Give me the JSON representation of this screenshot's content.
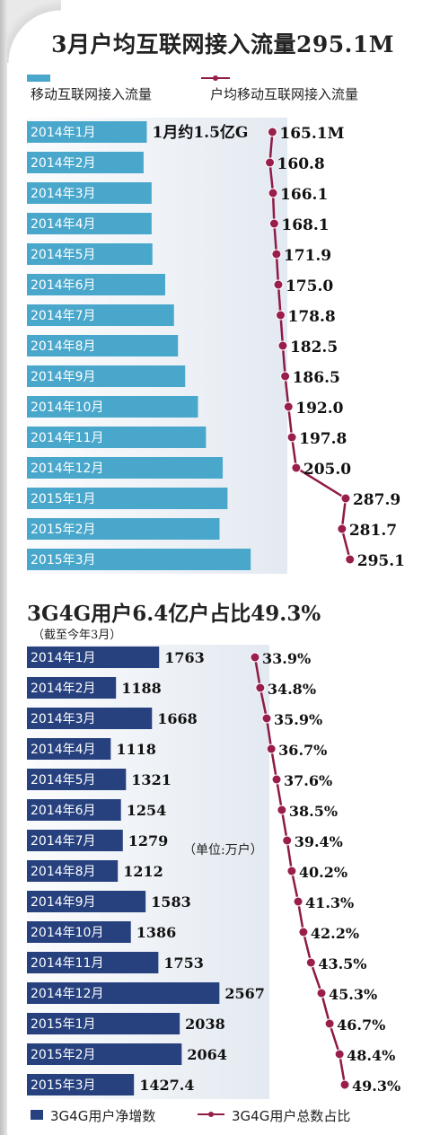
{
  "title1": "3月户均互联网接入流量295.1M",
  "legend1": {
    "bar": "移动互联网接入流量",
    "line": "户均移动互联网接入流量"
  },
  "title2": "3G4G用户6.4亿户占比49.3%",
  "subtitle2": "（截至今年3月）",
  "unit_note": "（单位:万户）",
  "legend2": {
    "bar": "3G4G用户净增数",
    "line": "3G4G用户总数占比"
  },
  "colors": {
    "bar1": "#4aa7cc",
    "bar2": "#27417f",
    "line": "#8e1b45",
    "dot": "#9a1e4c",
    "shade": "#dfe6ef"
  },
  "chart_data": [
    {
      "type": "bar",
      "categories": [
        "2014年1月",
        "2014年2月",
        "2014年3月",
        "2014年4月",
        "2014年5月",
        "2014年6月",
        "2014年7月",
        "2014年8月",
        "2014年9月",
        "2014年10月",
        "2014年11月",
        "2014年12月",
        "2015年1月",
        "2015年2月",
        "2015年3月"
      ],
      "series": [
        {
          "name": "移动互联网接入流量",
          "kind": "bar",
          "values": [
            1.5,
            1.46,
            1.56,
            1.56,
            1.57,
            1.73,
            1.84,
            1.89,
            1.98,
            2.14,
            2.24,
            2.45,
            2.51,
            2.41,
            2.8
          ],
          "data_labels": [
            "1月约1.5亿G",
            "",
            "",
            "",
            "",
            "",
            "",
            "",
            "",
            "",
            "",
            "",
            "",
            "",
            ""
          ]
        },
        {
          "name": "户均移动互联网接入流量",
          "kind": "line",
          "values": [
            165.1,
            160.8,
            166.1,
            168.1,
            171.9,
            175.0,
            178.8,
            182.5,
            186.5,
            192.0,
            197.8,
            205.0,
            287.9,
            281.7,
            295.1
          ],
          "data_labels": [
            "165.1M",
            "160.8",
            "166.1",
            "168.1",
            "171.9",
            "175.0",
            "178.8",
            "182.5",
            "186.5",
            "192.0",
            "197.8",
            "205.0",
            "287.9",
            "281.7",
            "295.1"
          ]
        }
      ],
      "orientation": "horizontal"
    },
    {
      "type": "bar",
      "categories": [
        "2014年1月",
        "2014年2月",
        "2014年3月",
        "2014年4月",
        "2014年5月",
        "2014年6月",
        "2014年7月",
        "2014年8月",
        "2014年9月",
        "2014年10月",
        "2014年11月",
        "2014年12月",
        "2015年1月",
        "2015年2月",
        "2015年3月"
      ],
      "series": [
        {
          "name": "3G4G用户净增数",
          "kind": "bar",
          "values": [
            1763,
            1188,
            1668,
            1118,
            1321,
            1254,
            1279,
            1212,
            1583,
            1386,
            1753,
            2567,
            2038,
            2064,
            1427.4
          ],
          "data_labels": [
            "1763",
            "1188",
            "1668",
            "1118",
            "1321",
            "1254",
            "1279",
            "1212",
            "1583",
            "1386",
            "1753",
            "2567",
            "2038",
            "2064",
            "1427.4"
          ]
        },
        {
          "name": "3G4G用户总数占比",
          "kind": "line",
          "values": [
            33.9,
            34.8,
            35.9,
            36.7,
            37.6,
            38.5,
            39.4,
            40.2,
            41.3,
            42.2,
            43.5,
            45.3,
            46.7,
            48.4,
            49.3
          ],
          "data_labels": [
            "33.9%",
            "34.8%",
            "35.9%",
            "36.7%",
            "37.6%",
            "38.5%",
            "39.4%",
            "40.2%",
            "41.3%",
            "42.2%",
            "43.5%",
            "45.3%",
            "46.7%",
            "48.4%",
            "49.3%"
          ]
        }
      ],
      "orientation": "horizontal"
    }
  ]
}
